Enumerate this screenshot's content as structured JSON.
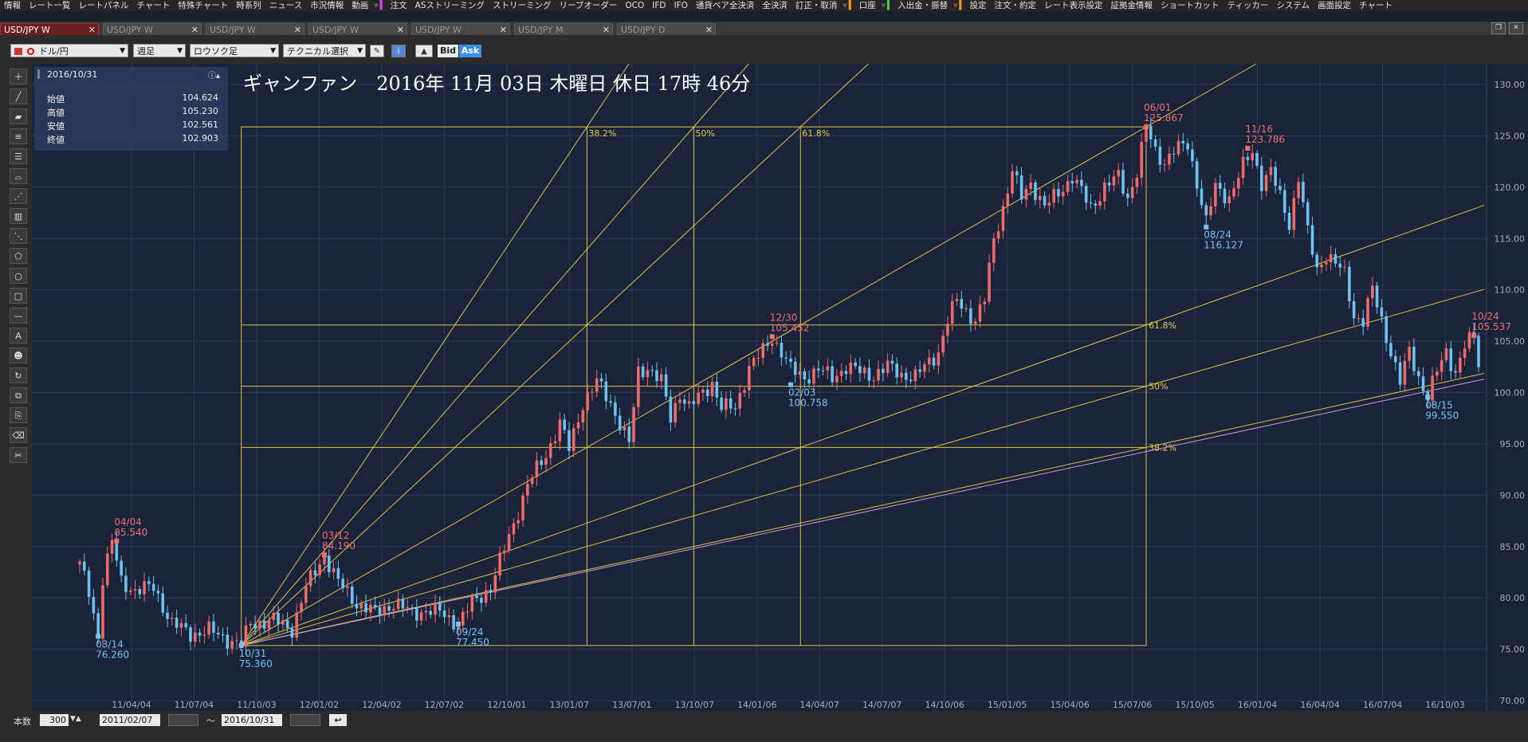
{
  "menu": {
    "items_a": [
      "情報",
      "レート一覧",
      "レートパネル",
      "チャート",
      "特殊チャート",
      "時系列",
      "ニュース",
      "市況情報",
      "動画"
    ],
    "items_b": [
      "注文",
      "ASストリーミング",
      "ストリーミング",
      "リーブオーダー",
      "OCO",
      "IFD",
      "IFO",
      "通貨ペア全決済",
      "全決済",
      "訂正・取消"
    ],
    "items_c": [
      "口座"
    ],
    "items_d": [
      "入出金・振替"
    ],
    "items_e": [
      "設定",
      "注文・約定",
      "レート表示設定",
      "証拠金情報",
      "ショートカット",
      "ティッカー",
      "システム",
      "画面設定",
      "チャート"
    ]
  },
  "tabs": [
    {
      "label": "USD/JPY W",
      "active": true
    },
    {
      "label": "USD/JPY W",
      "active": false
    },
    {
      "label": "USD/JPY W",
      "active": false
    },
    {
      "label": "USD/JPY W",
      "active": false
    },
    {
      "label": "USD/JPY W",
      "active": false
    },
    {
      "label": "USD/JPY M",
      "active": false
    },
    {
      "label": "USD/JPY D",
      "active": false
    }
  ],
  "toolbar": {
    "pair": "ドル/円",
    "period": "週足",
    "style": "ロウソク足",
    "technical": "テクニカル選択",
    "bid": "Bid",
    "ask": "Ask"
  },
  "info": {
    "date": "2016/10/31",
    "rows": [
      {
        "label": "始値",
        "value": "104.624"
      },
      {
        "label": "高値",
        "value": "105.230"
      },
      {
        "label": "安値",
        "value": "102.561"
      },
      {
        "label": "終値",
        "value": "102.903"
      }
    ]
  },
  "chart_data": {
    "type": "candlestick",
    "title": "ギャンファン　2016年 11月 03日 木曜日 休日 17時 46分",
    "ylim": [
      70,
      130
    ],
    "y_ticks": [
      "130.00",
      "125.00",
      "120.00",
      "115.00",
      "110.00",
      "105.00",
      "100.00",
      "95.00",
      "90.00",
      "85.00",
      "80.00",
      "75.00",
      "70.00"
    ],
    "x_ticks": [
      "11/04/04",
      "11/07/04",
      "11/10/03",
      "12/01/02",
      "12/04/02",
      "12/07/02",
      "12/10/01",
      "13/01/07",
      "13/07/01",
      "13/10/07",
      "14/01/06",
      "14/04/07",
      "14/07/07",
      "14/10/06",
      "15/01/05",
      "15/04/06",
      "15/07/06",
      "15/10/05",
      "16/01/04",
      "16/04/04",
      "16/07/04",
      "16/10/03"
    ],
    "fib_levels": [
      "38.2%",
      "50%",
      "61.8%"
    ],
    "annotations": [
      {
        "date": "04/04",
        "price": "85.540",
        "type": "high"
      },
      {
        "date": "03/14",
        "price": "76.260",
        "type": "low"
      },
      {
        "date": "10/31",
        "price": "75.360",
        "type": "low"
      },
      {
        "date": "03/12",
        "price": "84.190",
        "type": "high"
      },
      {
        "date": "09/24",
        "price": "77.450",
        "type": "low"
      },
      {
        "date": "12/30",
        "price": "105.452",
        "type": "high"
      },
      {
        "date": "02/03",
        "price": "100.758",
        "type": "low"
      },
      {
        "date": "06/01",
        "price": "125.867",
        "type": "high"
      },
      {
        "date": "08/24",
        "price": "116.127",
        "type": "low"
      },
      {
        "date": "11/16",
        "price": "123.786",
        "type": "high"
      },
      {
        "date": "08/15",
        "price": "99.550",
        "type": "low"
      },
      {
        "date": "10/24",
        "price": "105.537",
        "type": "high"
      }
    ],
    "anchors": [
      [
        0,
        83.2
      ],
      [
        2,
        80.5
      ],
      [
        4,
        76.3
      ],
      [
        5,
        82
      ],
      [
        7,
        85.5
      ],
      [
        9,
        81.5
      ],
      [
        12,
        80.8
      ],
      [
        16,
        81
      ],
      [
        20,
        77.5
      ],
      [
        24,
        76.5
      ],
      [
        28,
        76.8
      ],
      [
        32,
        76
      ],
      [
        35,
        75.4
      ],
      [
        37,
        77.5
      ],
      [
        42,
        77.8
      ],
      [
        46,
        77
      ],
      [
        49,
        81
      ],
      [
        53,
        84.2
      ],
      [
        56,
        81.5
      ],
      [
        60,
        79.5
      ],
      [
        64,
        78.5
      ],
      [
        68,
        79.5
      ],
      [
        72,
        78.5
      ],
      [
        75,
        78.8
      ],
      [
        78,
        78.6
      ],
      [
        82,
        77.5
      ],
      [
        85,
        79.5
      ],
      [
        89,
        81
      ],
      [
        93,
        86
      ],
      [
        97,
        91
      ],
      [
        101,
        94
      ],
      [
        104,
        97
      ],
      [
        106,
        94.5
      ],
      [
        109,
        99
      ],
      [
        112,
        101
      ],
      [
        115,
        99
      ],
      [
        117,
        97
      ],
      [
        119,
        95
      ],
      [
        121,
        102
      ],
      [
        123,
        102.5
      ],
      [
        126,
        101
      ],
      [
        128,
        97.5
      ],
      [
        130,
        100
      ],
      [
        132,
        98.5
      ],
      [
        134,
        99.5
      ],
      [
        137,
        101
      ],
      [
        139,
        98.5
      ],
      [
        142,
        98.5
      ],
      [
        145,
        102.5
      ],
      [
        148,
        104
      ],
      [
        150,
        105.4
      ],
      [
        152,
        104
      ],
      [
        154,
        102.2
      ],
      [
        157,
        101.5
      ],
      [
        160,
        102.2
      ],
      [
        163,
        101.5
      ],
      [
        166,
        102.5
      ],
      [
        169,
        102
      ],
      [
        172,
        101.7
      ],
      [
        175,
        102.5
      ],
      [
        178,
        101.8
      ],
      [
        181,
        101.5
      ],
      [
        183,
        102.5
      ],
      [
        186,
        104
      ],
      [
        188,
        107
      ],
      [
        190,
        109
      ],
      [
        192,
        108
      ],
      [
        194,
        107
      ],
      [
        196,
        109
      ],
      [
        198,
        115
      ],
      [
        200,
        118
      ],
      [
        202,
        121.5
      ],
      [
        204,
        119
      ],
      [
        206,
        120.5
      ],
      [
        209,
        118
      ],
      [
        212,
        119.5
      ],
      [
        215,
        121
      ],
      [
        217,
        119.5
      ],
      [
        219,
        118
      ],
      [
        222,
        120
      ],
      [
        225,
        121
      ],
      [
        227,
        119
      ],
      [
        229,
        121.5
      ],
      [
        231,
        125.8
      ],
      [
        233,
        123.5
      ],
      [
        235,
        122.5
      ],
      [
        237,
        123.5
      ],
      [
        240,
        124.2
      ],
      [
        242,
        120.5
      ],
      [
        244,
        116.5
      ],
      [
        246,
        120
      ],
      [
        249,
        119
      ],
      [
        252,
        122
      ],
      [
        254,
        123.5
      ],
      [
        256,
        120.5
      ],
      [
        258,
        121.5
      ],
      [
        260,
        119
      ],
      [
        262,
        116.5
      ],
      [
        264,
        121
      ],
      [
        266,
        115.5
      ],
      [
        268,
        112
      ],
      [
        270,
        113.5
      ],
      [
        272,
        112.5
      ],
      [
        274,
        111.5
      ],
      [
        276,
        107.5
      ],
      [
        278,
        107
      ],
      [
        280,
        110
      ],
      [
        282,
        107
      ],
      [
        284,
        104
      ],
      [
        286,
        101
      ],
      [
        288,
        104
      ],
      [
        290,
        101.5
      ],
      [
        292,
        99.6
      ],
      [
        294,
        102
      ],
      [
        296,
        104
      ],
      [
        298,
        102
      ],
      [
        300,
        104.5
      ],
      [
        302,
        105.5
      ],
      [
        303,
        102.9
      ]
    ]
  }
}
